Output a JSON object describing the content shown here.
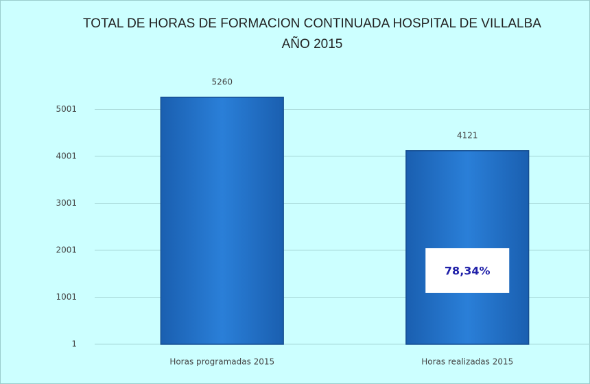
{
  "chart_data": {
    "type": "bar",
    "title": "TOTAL DE HORAS DE FORMACION CONTINUADA HOSPITAL DE VILLALBA AÑO 2015",
    "categories": [
      "Horas programadas 2015",
      "Horas realizadas 2015"
    ],
    "values": [
      5260,
      4121
    ],
    "color": "#1f6fc8",
    "ylim": [
      1,
      6001
    ],
    "yticks": [
      1,
      1001,
      2001,
      3001,
      4001,
      5001
    ],
    "grid": true,
    "annotation": "78,34%"
  }
}
